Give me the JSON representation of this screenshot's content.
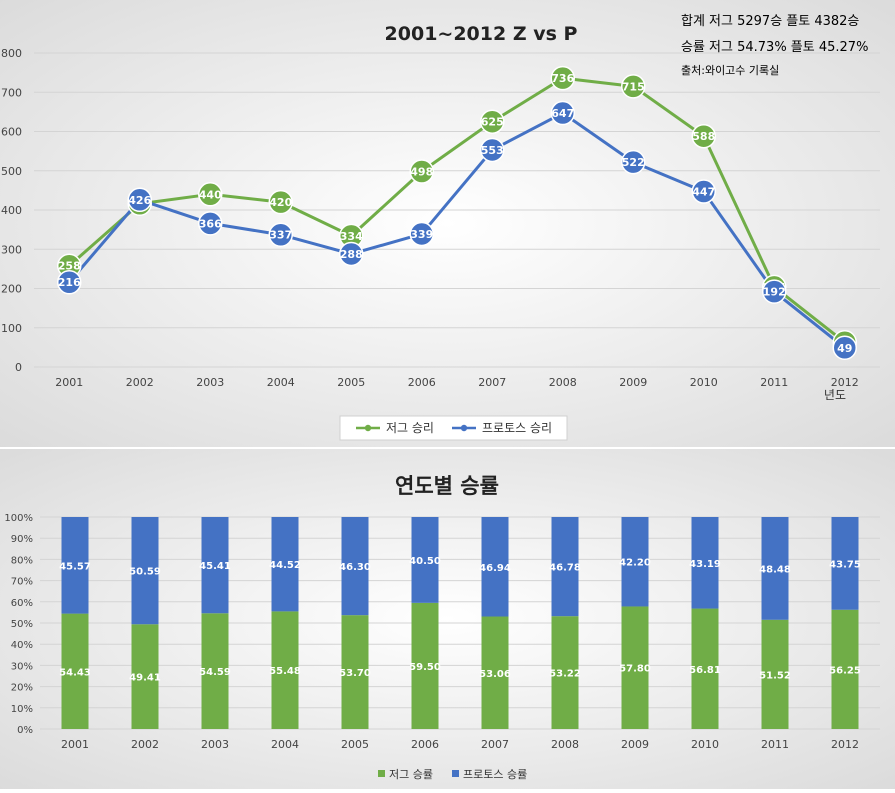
{
  "chart_data": [
    {
      "type": "line",
      "title": "2001~2012 Z vs P",
      "xlabel": "년도",
      "ylabel": "",
      "ylim": [
        0,
        800
      ],
      "yticks": [
        0,
        100,
        200,
        300,
        400,
        500,
        600,
        700,
        800
      ],
      "grid": true,
      "legend_position": "bottom",
      "categories": [
        "2001",
        "2002",
        "2003",
        "2004",
        "2005",
        "2006",
        "2007",
        "2008",
        "2009",
        "2010",
        "2011",
        "2012"
      ],
      "series": [
        {
          "name": "저그 승리",
          "color": "#70ad47",
          "values": [
            258,
            416,
            440,
            420,
            334,
            498,
            625,
            736,
            715,
            588,
            204,
            63
          ]
        },
        {
          "name": "프로토스 승리",
          "color": "#4472c4",
          "values": [
            216,
            426,
            366,
            337,
            288,
            339,
            553,
            647,
            522,
            447,
            192,
            49
          ]
        }
      ],
      "annotations": [
        "합계 저그 5297승 플토 4382승",
        "승률 저그 54.73% 플토 45.27%",
        "출처:와이고수 기록실"
      ]
    },
    {
      "type": "bar",
      "stacked": "percent",
      "title": "연도별 승률",
      "ylim": [
        0,
        100
      ],
      "yticks": [
        "0%",
        "10%",
        "20%",
        "30%",
        "40%",
        "50%",
        "60%",
        "70%",
        "80%",
        "90%",
        "100%"
      ],
      "grid": true,
      "legend_position": "bottom",
      "categories": [
        "2001",
        "2002",
        "2003",
        "2004",
        "2005",
        "2006",
        "2007",
        "2008",
        "2009",
        "2010",
        "2011",
        "2012"
      ],
      "series": [
        {
          "name": "저그 승률",
          "color": "#70ad47",
          "values": [
            "54.43",
            "49.41",
            "54.59",
            "55.48",
            "53.70",
            "59.50",
            "53.06",
            "53.22",
            "57.80",
            "56.81",
            "51.52",
            "56.25"
          ]
        },
        {
          "name": "프로토스 승률",
          "color": "#4472c4",
          "values": [
            "45.57",
            "50.59",
            "45.41",
            "44.52",
            "46.30",
            "40.50",
            "46.94",
            "46.78",
            "42.20",
            "43.19",
            "48.48",
            "43.75"
          ]
        }
      ]
    }
  ]
}
